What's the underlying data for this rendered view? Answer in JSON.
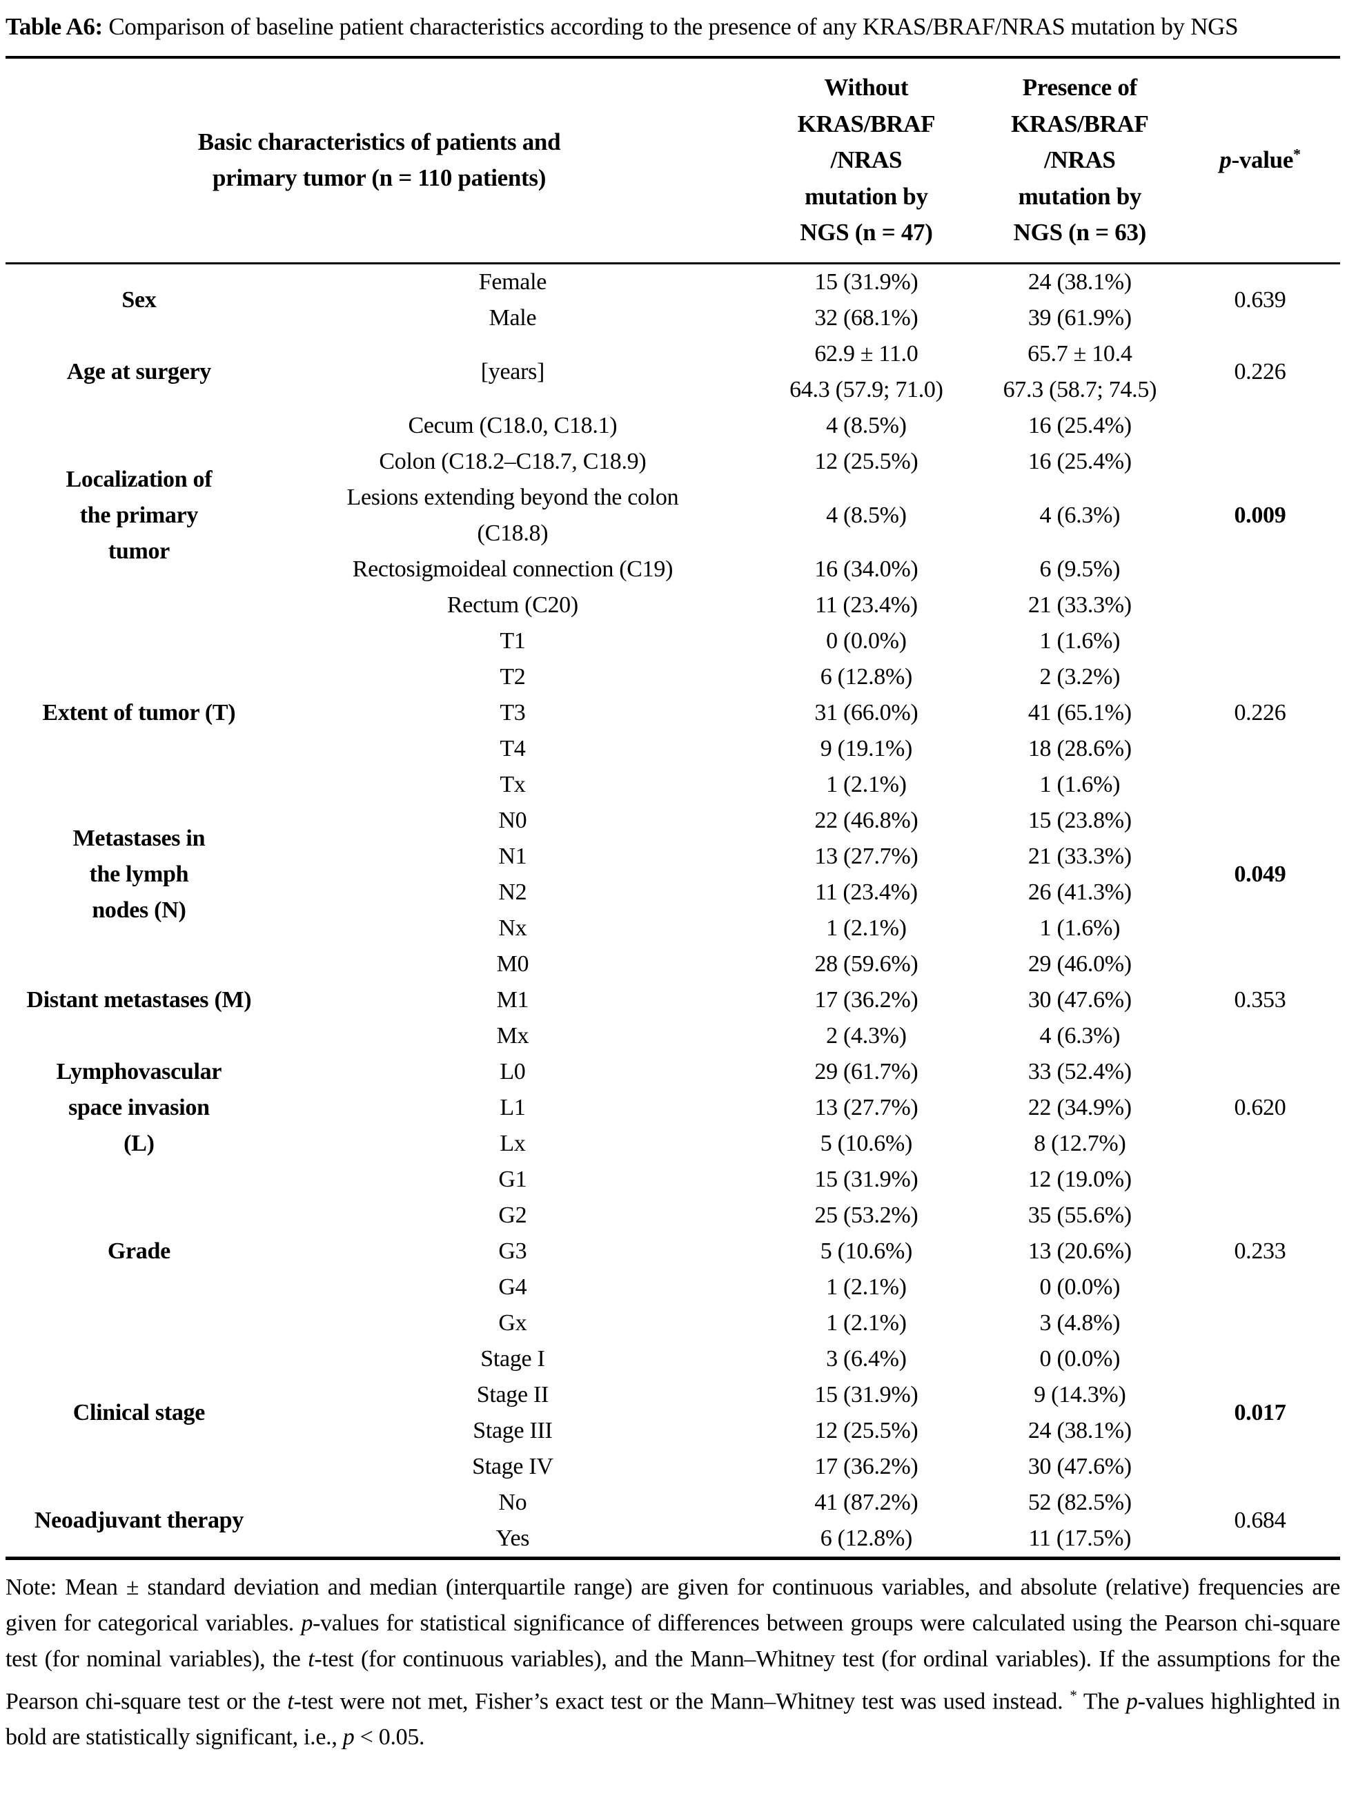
{
  "colors": {
    "text": "#000000",
    "rule": "#000000",
    "background": "#ffffff"
  },
  "title": {
    "label": "Table A6:",
    "text": " Comparison of baseline patient characteristics according to the presence of any KRAS/BRAF/NRAS mutation by NGS"
  },
  "table": {
    "header": {
      "characteristics": "Basic characteristics of patients and\nprimary tumor (n = 110 patients)",
      "without": "Without\nKRAS/BRAF\n/NRAS\nmutation by\nNGS (n = 47)",
      "presence": "Presence of\nKRAS/BRAF\n/NRAS\nmutation by\nNGS (n = 63)",
      "pvalue_italic": "p",
      "pvalue_rest": "-value",
      "pvalue_sup": "*"
    },
    "groups": [
      {
        "category": "Sex",
        "p_value": "0.639",
        "p_bold": false,
        "rows": [
          {
            "label": "Female",
            "without": "15 (31.9%)",
            "presence": "24 (38.1%)"
          },
          {
            "label": "Male",
            "without": "32 (68.1%)",
            "presence": "39 (61.9%)"
          }
        ]
      },
      {
        "category": "Age at surgery",
        "p_value": "0.226",
        "p_bold": false,
        "rows": [
          {
            "label": "[years]",
            "without": "62.9 ± 11.0\n64.3 (57.9; 71.0)",
            "presence": "65.7 ± 10.4\n67.3 (58.7; 74.5)"
          }
        ]
      },
      {
        "category": "Localization of\nthe primary\ntumor",
        "p_value": "0.009",
        "p_bold": true,
        "rows": [
          {
            "label": "Cecum (C18.0, C18.1)",
            "without": "4 (8.5%)",
            "presence": "16 (25.4%)"
          },
          {
            "label": "Colon (C18.2–C18.7, C18.9)",
            "without": "12 (25.5%)",
            "presence": "16 (25.4%)"
          },
          {
            "label": "Lesions extending beyond the colon\n(C18.8)",
            "without": "4 (8.5%)",
            "presence": "4 (6.3%)"
          },
          {
            "label": "Rectosigmoideal connection (C19)",
            "without": "16 (34.0%)",
            "presence": "6 (9.5%)"
          },
          {
            "label": "Rectum (C20)",
            "without": "11 (23.4%)",
            "presence": "21 (33.3%)"
          }
        ]
      },
      {
        "category": "Extent of tumor (T)",
        "p_value": "0.226",
        "p_bold": false,
        "rows": [
          {
            "label": "T1",
            "without": "0 (0.0%)",
            "presence": "1 (1.6%)"
          },
          {
            "label": "T2",
            "without": "6 (12.8%)",
            "presence": "2 (3.2%)"
          },
          {
            "label": "T3",
            "without": "31 (66.0%)",
            "presence": "41 (65.1%)"
          },
          {
            "label": "T4",
            "without": "9 (19.1%)",
            "presence": "18 (28.6%)"
          },
          {
            "label": "Tx",
            "without": "1 (2.1%)",
            "presence": "1 (1.6%)"
          }
        ]
      },
      {
        "category": "Metastases in\nthe lymph\nnodes (N)",
        "p_value": "0.049",
        "p_bold": true,
        "rows": [
          {
            "label": "N0",
            "without": "22 (46.8%)",
            "presence": "15 (23.8%)"
          },
          {
            "label": "N1",
            "without": "13 (27.7%)",
            "presence": "21 (33.3%)"
          },
          {
            "label": "N2",
            "without": "11 (23.4%)",
            "presence": "26 (41.3%)"
          },
          {
            "label": "Nx",
            "without": "1 (2.1%)",
            "presence": "1 (1.6%)"
          }
        ]
      },
      {
        "category": "Distant metastases (M)",
        "p_value": "0.353",
        "p_bold": false,
        "rows": [
          {
            "label": "M0",
            "without": "28 (59.6%)",
            "presence": "29 (46.0%)"
          },
          {
            "label": "M1",
            "without": "17 (36.2%)",
            "presence": "30 (47.6%)"
          },
          {
            "label": "Mx",
            "without": "2 (4.3%)",
            "presence": "4 (6.3%)"
          }
        ]
      },
      {
        "category": "Lymphovascular\nspace invasion\n(L)",
        "p_value": "0.620",
        "p_bold": false,
        "rows": [
          {
            "label": "L0",
            "without": "29 (61.7%)",
            "presence": "33 (52.4%)"
          },
          {
            "label": "L1",
            "without": "13 (27.7%)",
            "presence": "22 (34.9%)"
          },
          {
            "label": "Lx",
            "without": "5 (10.6%)",
            "presence": "8 (12.7%)"
          }
        ]
      },
      {
        "category": "Grade",
        "p_value": "0.233",
        "p_bold": false,
        "rows": [
          {
            "label": "G1",
            "without": "15 (31.9%)",
            "presence": "12 (19.0%)"
          },
          {
            "label": "G2",
            "without": "25 (53.2%)",
            "presence": "35 (55.6%)"
          },
          {
            "label": "G3",
            "without": "5 (10.6%)",
            "presence": "13 (20.6%)"
          },
          {
            "label": "G4",
            "without": "1 (2.1%)",
            "presence": "0 (0.0%)"
          },
          {
            "label": "Gx",
            "without": "1 (2.1%)",
            "presence": "3 (4.8%)"
          }
        ]
      },
      {
        "category": "Clinical stage",
        "p_value": "0.017",
        "p_bold": true,
        "rows": [
          {
            "label": "Stage I",
            "without": "3 (6.4%)",
            "presence": "0 (0.0%)"
          },
          {
            "label": "Stage II",
            "without": "15 (31.9%)",
            "presence": "9 (14.3%)"
          },
          {
            "label": "Stage III",
            "without": "12 (25.5%)",
            "presence": "24 (38.1%)"
          },
          {
            "label": "Stage IV",
            "without": "17 (36.2%)",
            "presence": "30 (47.6%)"
          }
        ]
      },
      {
        "category": "Neoadjuvant therapy",
        "p_value": "0.684",
        "p_bold": false,
        "rows": [
          {
            "label": "No",
            "without": "41 (87.2%)",
            "presence": "52 (82.5%)"
          },
          {
            "label": "Yes",
            "without": "6 (12.8%)",
            "presence": "11 (17.5%)"
          }
        ]
      }
    ]
  },
  "note": {
    "segments": [
      {
        "text": "Note: Mean ± standard deviation and median (interquartile range) are given for continuous variables, and absolute (relative) frequencies are given for categorical variables. "
      },
      {
        "text": "p",
        "italic": true
      },
      {
        "text": "-values for statistical significance of differences between groups were calculated using the Pearson chi-square test (for nominal variables), the "
      },
      {
        "text": "t",
        "italic": true
      },
      {
        "text": "-test (for continuous variables), and the Mann–Whitney test (for ordinal variables). If the assumptions for the Pearson chi-square test or the "
      },
      {
        "text": "t",
        "italic": true
      },
      {
        "text": "-test were not met, Fisher’s exact test or the Mann–Whitney test was used instead. "
      },
      {
        "text": "*",
        "sup": true
      },
      {
        "text": " The "
      },
      {
        "text": "p",
        "italic": true
      },
      {
        "text": "-values highlighted in bold are statistically significant, i.e., "
      },
      {
        "text": "p",
        "italic": true
      },
      {
        "text": " < 0.05."
      }
    ]
  }
}
